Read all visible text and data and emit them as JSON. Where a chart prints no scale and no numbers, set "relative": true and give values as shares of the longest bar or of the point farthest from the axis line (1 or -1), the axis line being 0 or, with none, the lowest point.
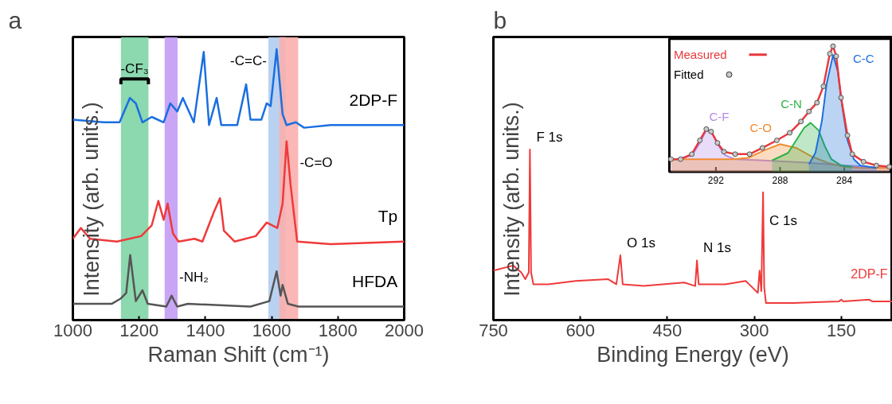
{
  "chart_data": [
    {
      "type": "line",
      "title": "a",
      "xlabel": "Raman Shift (cm⁻¹)",
      "ylabel": "Intensity (arb. units.)",
      "relative": true,
      "xlim": [
        1000,
        2000
      ],
      "xticks": [
        1000,
        1200,
        1400,
        1600,
        1800,
        2000
      ],
      "grid": false,
      "tick_labels": "x",
      "series": [
        {
          "name": "2DP-F",
          "color": "#1a6fe0",
          "x": [
            1000,
            1093,
            1141,
            1172,
            1190,
            1210,
            1238,
            1274,
            1294,
            1315,
            1332,
            1365,
            1395,
            1411,
            1434,
            1448,
            1496,
            1523,
            1536,
            1569,
            1585,
            1597,
            1615,
            1633,
            1645,
            1673,
            1698,
            1778,
            2000
          ],
          "values": [
            0.74,
            0.73,
            0.73,
            0.82,
            0.8,
            0.73,
            0.75,
            0.73,
            0.8,
            0.77,
            0.82,
            0.73,
            0.99,
            0.72,
            0.82,
            0.72,
            0.72,
            0.87,
            0.74,
            0.74,
            0.8,
            0.79,
            1.0,
            0.76,
            0.72,
            0.73,
            0.71,
            0.72,
            0.72
          ]
        },
        {
          "name": "Tp",
          "color": "#ef3a3a",
          "x": [
            1000,
            1024,
            1052,
            1133,
            1206,
            1238,
            1258,
            1274,
            1286,
            1302,
            1319,
            1367,
            1391,
            1426,
            1444,
            1456,
            1488,
            1552,
            1585,
            1617,
            1633,
            1645,
            1657,
            1677,
            1778,
            2000
          ],
          "values": [
            0.3,
            0.34,
            0.3,
            0.29,
            0.31,
            0.35,
            0.44,
            0.37,
            0.43,
            0.32,
            0.29,
            0.3,
            0.29,
            0.4,
            0.45,
            0.33,
            0.29,
            0.31,
            0.36,
            0.34,
            0.43,
            0.66,
            0.5,
            0.29,
            0.28,
            0.29
          ]
        },
        {
          "name": "HFDA",
          "color": "#555555",
          "x": [
            1000,
            1117,
            1145,
            1161,
            1173,
            1190,
            1210,
            1226,
            1282,
            1298,
            1315,
            1347,
            1536,
            1593,
            1615,
            1627,
            1633,
            1649,
            1681,
            2000
          ],
          "values": [
            0.06,
            0.06,
            0.08,
            0.1,
            0.24,
            0.07,
            0.11,
            0.06,
            0.05,
            0.09,
            0.05,
            0.06,
            0.05,
            0.07,
            0.18,
            0.09,
            0.13,
            0.06,
            0.05,
            0.05
          ]
        }
      ],
      "bands": [
        {
          "axis": "x",
          "from": 1145,
          "to": 1228,
          "label": "-CF₃",
          "color": "#7fd4a6"
        },
        {
          "axis": "x",
          "from": 1277,
          "to": 1316,
          "label": "-NH₂",
          "color": "#c39bf5"
        },
        {
          "axis": "x",
          "from": 1590,
          "to": 1643,
          "label": "-C=C-",
          "color": "#b3cdf0"
        },
        {
          "axis": "x",
          "from": 1623,
          "to": 1680,
          "label": "-C=O",
          "color": "#f9afad"
        }
      ]
    },
    {
      "type": "line",
      "title": "b",
      "xlabel": "Binding Energy (eV)",
      "ylabel": "Intensity (arb. units.)",
      "relative": true,
      "xlim": [
        750,
        62
      ],
      "xticks": [
        750,
        600,
        450,
        300,
        150
      ],
      "grid": false,
      "tick_labels": "x",
      "series": [
        {
          "name": "2DP-F",
          "color": "#ef3a3a",
          "x": [
            750,
            716,
            702,
            695,
            689,
            687,
            685,
            681,
            655,
            608,
            552,
            538,
            531,
            527,
            491,
            421,
            402,
            399,
            396,
            350,
            315,
            306,
            294,
            291,
            288,
            285,
            283,
            280,
            233,
            154,
            150,
            147,
            102,
            97,
            62
          ],
          "values": [
            0.29,
            0.32,
            0.28,
            0.24,
            0.28,
            1.0,
            0.28,
            0.21,
            0.21,
            0.23,
            0.24,
            0.21,
            0.38,
            0.21,
            0.2,
            0.22,
            0.2,
            0.35,
            0.21,
            0.21,
            0.23,
            0.2,
            0.16,
            0.29,
            0.17,
            0.75,
            0.19,
            0.1,
            0.1,
            0.11,
            0.12,
            0.11,
            0.12,
            0.11,
            0.11
          ]
        }
      ],
      "annotations": [
        {
          "text": "F 1s",
          "x": 687,
          "y": 1.0
        },
        {
          "text": "O 1s",
          "x": 531,
          "y": 0.38
        },
        {
          "text": "N 1s",
          "x": 399,
          "y": 0.35
        },
        {
          "text": "C 1s",
          "x": 285,
          "y": 0.75
        }
      ]
    },
    {
      "type": "area",
      "relative": true,
      "xlim": [
        294.9,
        281.1
      ],
      "xticks": [
        292,
        288,
        284
      ],
      "legend": "top left",
      "tick_labels": "x",
      "series": [
        {
          "name": "C-F",
          "type": "area",
          "color": "#b48ae8",
          "x": [
            294.8,
            293.5,
            293.0,
            292.6,
            292.2,
            291.8,
            291.4,
            290.8,
            289.0,
            286.0,
            284.0,
            281.2
          ],
          "values": [
            0.09,
            0.13,
            0.23,
            0.33,
            0.3,
            0.2,
            0.13,
            0.1,
            0.09,
            0.07,
            0.05,
            0.03
          ]
        },
        {
          "name": "C-O",
          "type": "area",
          "color": "#f28a30",
          "x": [
            294.8,
            291.0,
            290.0,
            289.0,
            288.0,
            287.0,
            286.0,
            285.0,
            284.0,
            283.0,
            281.2
          ],
          "values": [
            0.1,
            0.1,
            0.11,
            0.17,
            0.22,
            0.19,
            0.12,
            0.07,
            0.04,
            0.03,
            0.03
          ]
        },
        {
          "name": "C-N",
          "type": "area",
          "color": "#2db34a",
          "x": [
            288.5,
            287.5,
            287.0,
            286.5,
            286.1,
            285.6,
            285.2,
            284.8,
            284.2,
            283.5
          ],
          "values": [
            0.09,
            0.15,
            0.25,
            0.35,
            0.39,
            0.33,
            0.2,
            0.1,
            0.05,
            0.04
          ]
        },
        {
          "name": "C-C",
          "type": "area",
          "color": "#1f6fdc",
          "x": [
            286.2,
            285.8,
            285.4,
            285.1,
            284.7,
            284.4,
            284.1,
            283.8,
            283.4,
            283.0,
            282.0
          ],
          "values": [
            0.06,
            0.15,
            0.4,
            0.7,
            0.93,
            0.8,
            0.5,
            0.25,
            0.1,
            0.05,
            0.03
          ]
        },
        {
          "name": "Measured",
          "type": "line",
          "color": "#e8383d",
          "x": [
            294.8,
            294.2,
            293.5,
            293.0,
            292.6,
            292.3,
            291.9,
            291.5,
            290.8,
            289.9,
            289.1,
            288.2,
            287.4,
            286.7,
            286.2,
            285.7,
            285.3,
            284.9,
            284.7,
            284.5,
            284.2,
            283.8,
            283.5,
            282.8,
            282.0,
            281.2
          ],
          "values": [
            0.1,
            0.1,
            0.14,
            0.25,
            0.34,
            0.32,
            0.23,
            0.16,
            0.14,
            0.14,
            0.19,
            0.25,
            0.31,
            0.4,
            0.48,
            0.55,
            0.68,
            0.94,
            1.0,
            0.92,
            0.59,
            0.29,
            0.14,
            0.08,
            0.05,
            0.04
          ]
        },
        {
          "name": "Fitted",
          "type": "scatter",
          "marker": "circle",
          "color": "#c8c8c8",
          "x": [
            294.8,
            294.2,
            293.5,
            293.0,
            292.6,
            292.3,
            291.9,
            291.5,
            290.8,
            289.9,
            289.1,
            288.2,
            287.4,
            286.7,
            286.2,
            285.7,
            285.3,
            284.9,
            284.7,
            284.5,
            284.2,
            283.8,
            283.5,
            282.8,
            282.0,
            281.2
          ],
          "values": [
            0.1,
            0.1,
            0.14,
            0.25,
            0.34,
            0.32,
            0.23,
            0.16,
            0.14,
            0.14,
            0.19,
            0.25,
            0.31,
            0.4,
            0.48,
            0.55,
            0.68,
            0.94,
            1.0,
            0.92,
            0.59,
            0.29,
            0.14,
            0.08,
            0.05,
            0.04
          ]
        }
      ]
    }
  ]
}
